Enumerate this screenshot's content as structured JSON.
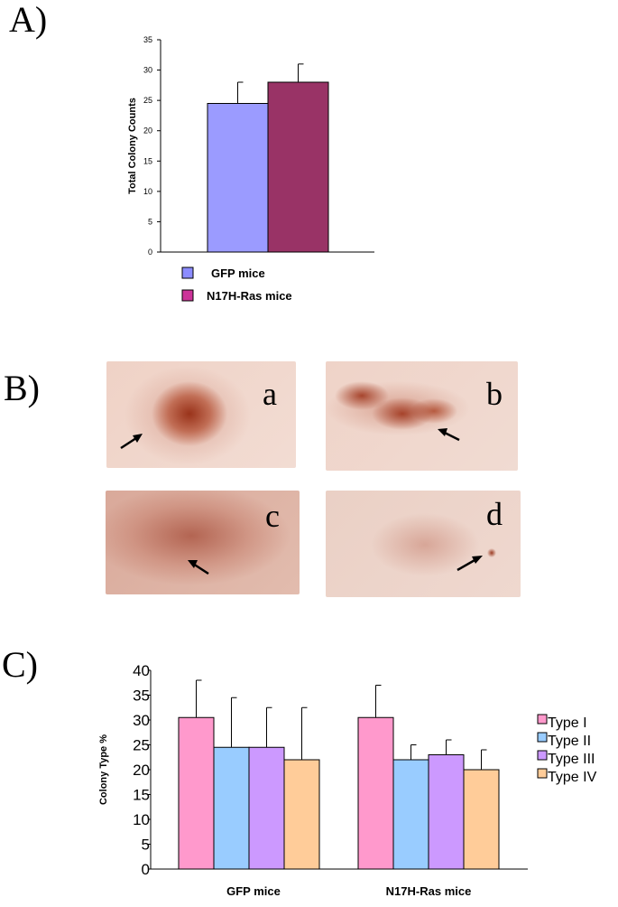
{
  "panel_labels": {
    "a": "A)",
    "b": "B)",
    "c": "C)"
  },
  "photo_letters": [
    "a",
    "b",
    "c",
    "d"
  ],
  "chart_data": [
    {
      "type": "bar",
      "ylabel": "Total Colony Counts",
      "ylim": [
        0,
        35
      ],
      "yticks": [
        0,
        5,
        10,
        15,
        20,
        25,
        30,
        35
      ],
      "categories": [
        "GFP mice",
        "N17H-Ras mice"
      ],
      "values": [
        24.5,
        28
      ],
      "errors": [
        3.5,
        3
      ],
      "colors": [
        "#9b9bff",
        "#993366"
      ],
      "legend": [
        {
          "label": "GFP mice",
          "color": "#8c8cff"
        },
        {
          "label": "N17H-Ras mice",
          "color": "#cc3399"
        }
      ],
      "legend_position": "bottom"
    },
    {
      "type": "bar",
      "ylabel": "Colony Type %",
      "ylim": [
        0,
        40
      ],
      "yticks": [
        0,
        5,
        10,
        15,
        20,
        25,
        30,
        35,
        40
      ],
      "categories": [
        "GFP mice",
        "N17H-Ras mice"
      ],
      "series": [
        {
          "name": "Type I",
          "values": [
            30.5,
            30.5
          ],
          "errors": [
            7.5,
            6.5
          ],
          "color": "#ff99cc"
        },
        {
          "name": "Type II",
          "values": [
            24.5,
            22
          ],
          "errors": [
            10,
            3
          ],
          "color": "#99ccff"
        },
        {
          "name": "Type III",
          "values": [
            24.5,
            23
          ],
          "errors": [
            8,
            3
          ],
          "color": "#cc99ff"
        },
        {
          "name": "Type IV",
          "values": [
            22,
            20
          ],
          "errors": [
            10.5,
            4
          ],
          "color": "#ffcc99"
        }
      ],
      "legend_position": "right"
    }
  ]
}
